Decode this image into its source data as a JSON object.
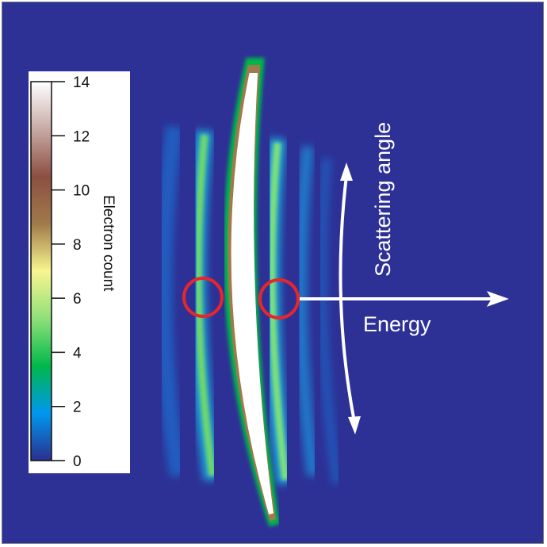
{
  "chart_data": {
    "type": "heatmap",
    "title": "",
    "colorbar": {
      "label": "Electron count",
      "ticks": [
        0,
        2,
        4,
        6,
        8,
        10,
        12,
        14
      ],
      "range": [
        0,
        14
      ],
      "colors": [
        "#2a2f8f",
        "#0097f0",
        "#00b84a",
        "#8fe07a",
        "#f8f590",
        "#a07a4a",
        "#8c4f42",
        "#c8aaa5",
        "#ffffff"
      ]
    },
    "annotations": {
      "vertical_arrow": "Scattering angle",
      "horizontal_arrow": "Energy"
    },
    "background_color": "#2d3196",
    "highlight_color": "#e8262a"
  }
}
